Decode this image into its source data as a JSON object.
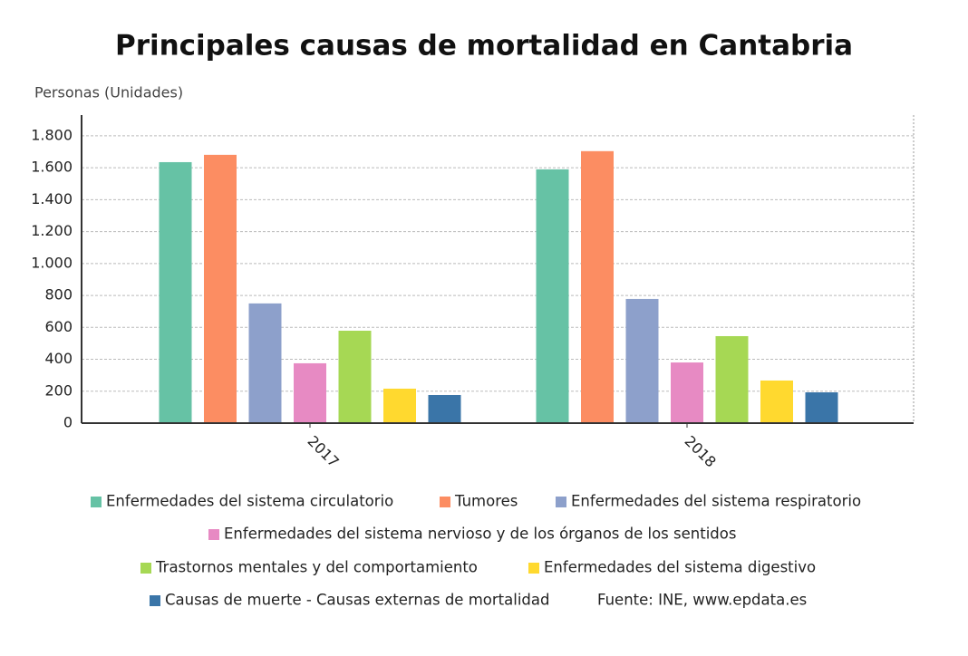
{
  "chart_data": {
    "type": "bar",
    "title": "Principales causas de mortalidad en Cantabria",
    "y_label": "Personas (Unidades)",
    "source": "Fuente: INE, www.epdata.es",
    "categories": [
      "2017",
      "2018"
    ],
    "series": [
      {
        "name": "Enfermedades del sistema circulatorio",
        "color": "#66c2a5",
        "values": [
          1635,
          1590
        ]
      },
      {
        "name": "Tumores",
        "color": "#fc8d62",
        "values": [
          1681,
          1704
        ]
      },
      {
        "name": "Enfermedades del sistema respiratorio",
        "color": "#8da0cb",
        "values": [
          750,
          778
        ]
      },
      {
        "name": "Enfermedades del sistema nervioso y de los órganos de los sentidos",
        "color": "#e78ac3",
        "values": [
          375,
          380
        ]
      },
      {
        "name": "Trastornos mentales y del comportamiento",
        "color": "#a6d854",
        "values": [
          579,
          545
        ]
      },
      {
        "name": "Enfermedades del sistema digestivo",
        "color": "#ffd92f",
        "values": [
          216,
          267
        ]
      },
      {
        "name": "Causas de muerte - Causas externas de mortalidad",
        "color": "#3a75a8",
        "values": [
          176,
          193
        ]
      }
    ],
    "ylim": [
      0,
      1930
    ],
    "yticks": [
      0,
      200,
      400,
      600,
      800,
      {
        "value": 1000,
        "label": "1.000"
      },
      {
        "value": 1200,
        "label": "1.200"
      },
      {
        "value": 1400,
        "label": "1.400"
      },
      {
        "value": 1600,
        "label": "1.600"
      },
      {
        "value": 1800,
        "label": "1.800"
      }
    ],
    "grid": true
  }
}
